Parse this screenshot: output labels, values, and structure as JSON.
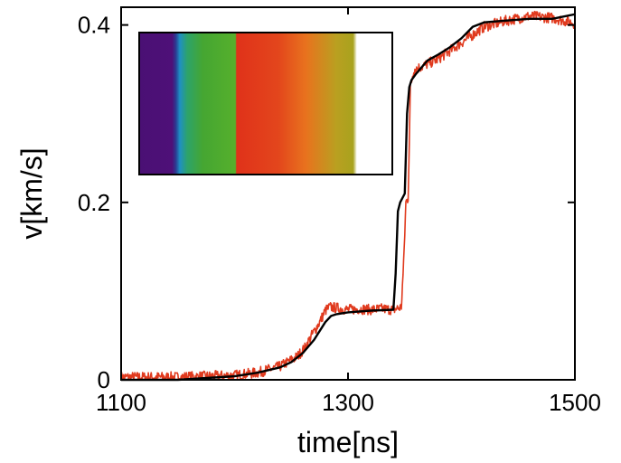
{
  "chart_data": {
    "type": "line",
    "title": "",
    "xlabel": "time[ns]",
    "ylabel": "v[km/s]",
    "xlim": [
      1100,
      1500
    ],
    "ylim": [
      0,
      0.42
    ],
    "xticks": [
      1100,
      1300,
      1500
    ],
    "yticks": [
      0,
      0.2,
      0.4
    ],
    "xtick_labels": [
      "1100",
      "1300",
      "1500"
    ],
    "ytick_labels": [
      "0",
      "0.2",
      "0.4"
    ],
    "grid": false,
    "legend": "none",
    "series": [
      {
        "color": "#e03a1e",
        "noisy": true,
        "x": [
          1100,
          1150,
          1200,
          1220,
          1240,
          1255,
          1262,
          1268,
          1275,
          1280,
          1284,
          1290,
          1300,
          1310,
          1320,
          1330,
          1340,
          1347,
          1349,
          1351,
          1353,
          1355,
          1358,
          1365,
          1380,
          1400,
          1420,
          1440,
          1460,
          1480,
          1500
        ],
        "y": [
          0.003,
          0.003,
          0.005,
          0.008,
          0.015,
          0.026,
          0.036,
          0.05,
          0.065,
          0.078,
          0.082,
          0.081,
          0.079,
          0.08,
          0.079,
          0.08,
          0.079,
          0.082,
          0.13,
          0.2,
          0.205,
          0.33,
          0.35,
          0.353,
          0.362,
          0.38,
          0.398,
          0.405,
          0.41,
          0.408,
          0.402
        ]
      },
      {
        "color": "#000000",
        "noisy": false,
        "x": [
          1100,
          1150,
          1200,
          1220,
          1240,
          1250,
          1260,
          1270,
          1280,
          1285,
          1290,
          1300,
          1320,
          1340,
          1342,
          1344,
          1346,
          1350,
          1352,
          1354,
          1356,
          1360,
          1370,
          1380,
          1390,
          1400,
          1410,
          1420,
          1440,
          1460,
          1480,
          1500
        ],
        "y": [
          0,
          0,
          0.004,
          0.008,
          0.014,
          0.02,
          0.03,
          0.045,
          0.065,
          0.072,
          0.074,
          0.076,
          0.078,
          0.079,
          0.12,
          0.19,
          0.2,
          0.21,
          0.3,
          0.33,
          0.338,
          0.345,
          0.36,
          0.367,
          0.375,
          0.385,
          0.398,
          0.403,
          0.405,
          0.407,
          0.407,
          0.412
        ]
      }
    ],
    "inset": {
      "type": "image",
      "content": "color-band-strip",
      "bands": [
        "#4a1074",
        "#1f8fc4",
        "#45a632",
        "#e0321a",
        "#e8731e",
        "#a9a020",
        "#ffffff"
      ]
    }
  }
}
